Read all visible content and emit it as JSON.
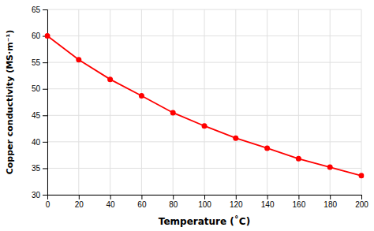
{
  "chart_data": {
    "type": "line",
    "xlabel": "Temperature (˚C)",
    "ylabel": "Copper conductivity (MS·m⁻¹)",
    "x": [
      0,
      20,
      40,
      60,
      80,
      100,
      120,
      140,
      160,
      180,
      200
    ],
    "values": [
      60.0,
      55.5,
      51.8,
      48.7,
      45.5,
      43.0,
      40.7,
      38.8,
      36.8,
      35.2,
      33.6
    ],
    "color": "#ff0000",
    "marker": "circle",
    "xlim": [
      0,
      200
    ],
    "ylim": [
      30,
      65
    ],
    "xticks": [
      0,
      20,
      40,
      60,
      80,
      100,
      120,
      140,
      160,
      180,
      200
    ],
    "yticks": [
      30,
      35,
      40,
      45,
      50,
      55,
      60,
      65
    ],
    "grid": true
  }
}
